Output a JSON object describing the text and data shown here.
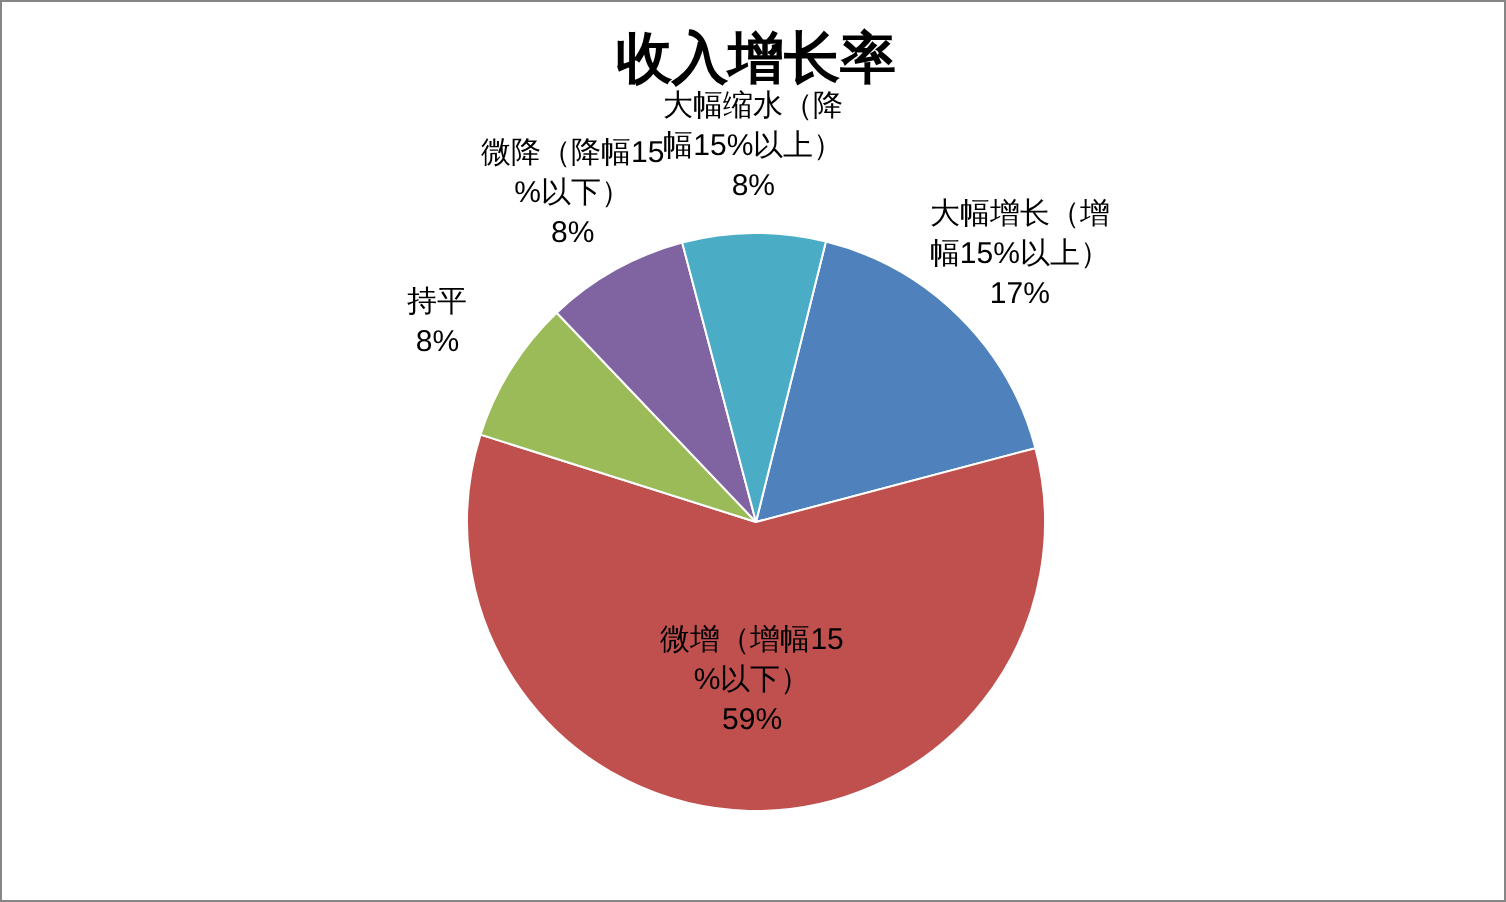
{
  "chart_data": {
    "type": "pie",
    "title": "收入增长率",
    "categories": [
      "大幅增长（增幅15%以上）",
      "微增（增幅15%以下）",
      "持平",
      "微降（降幅15%以下）",
      "大幅缩水（降幅15%以上）"
    ],
    "values": [
      17,
      59,
      8,
      8,
      8
    ],
    "colors": [
      "#4f81bd",
      "#c0504d",
      "#9bbb59",
      "#8064a2",
      "#4bacc6"
    ],
    "value_labels": [
      "17%",
      "59%",
      "8%",
      "8%",
      "8%"
    ],
    "legend": false
  }
}
